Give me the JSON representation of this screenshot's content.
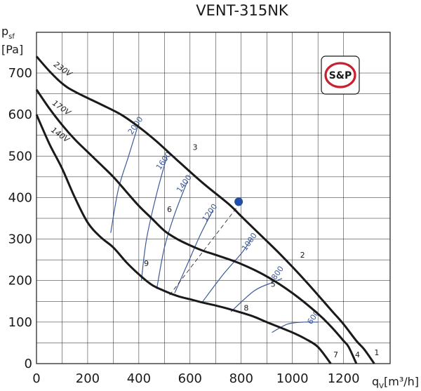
{
  "chart_data": {
    "type": "line",
    "title": "VENT-315NK",
    "ylabel_main": "p",
    "ylabel_sub": "sf",
    "yunit": "[Pa]",
    "xlabel_main": "q",
    "xlabel_sub": "V",
    "xunit": "[m³/h]",
    "xlim": [
      0,
      1300
    ],
    "ylim": [
      0,
      750
    ],
    "xticks": [
      "0",
      "200",
      "400",
      "600",
      "800",
      "1000",
      "1200"
    ],
    "yticks": [
      "0",
      "100",
      "200",
      "300",
      "400",
      "500",
      "600",
      "700"
    ],
    "grid": true,
    "logo_text": "S&P",
    "series": [
      {
        "name": "230V",
        "x": [
          0,
          50,
          100,
          150,
          250,
          330,
          400,
          470,
          550,
          650,
          750,
          800,
          850,
          950,
          1050,
          1150,
          1200,
          1250,
          1280,
          1320
        ],
        "y": [
          740,
          705,
          675,
          655,
          625,
          600,
          570,
          535,
          490,
          435,
          385,
          355,
          325,
          265,
          200,
          130,
          95,
          55,
          35,
          0
        ]
      },
      {
        "name": "170V",
        "x": [
          0,
          50,
          100,
          150,
          200,
          250,
          300,
          350,
          400,
          450,
          500,
          550,
          600,
          650,
          700,
          800,
          900,
          1000,
          1100,
          1150,
          1200,
          1220,
          1250
        ],
        "y": [
          660,
          615,
          575,
          540,
          510,
          480,
          450,
          415,
          380,
          350,
          320,
          300,
          285,
          272,
          262,
          240,
          210,
          170,
          120,
          90,
          55,
          40,
          0
        ]
      },
      {
        "name": "140V",
        "x": [
          0,
          50,
          100,
          150,
          200,
          250,
          300,
          350,
          400,
          450,
          500,
          550,
          600,
          650,
          700,
          750,
          800,
          850,
          900,
          1000,
          1050,
          1100,
          1150
        ],
        "y": [
          600,
          530,
          470,
          400,
          340,
          305,
          280,
          245,
          215,
          190,
          175,
          163,
          155,
          147,
          140,
          132,
          123,
          113,
          100,
          75,
          60,
          40,
          0
        ]
      }
    ],
    "series_labels": [
      {
        "text": "230V",
        "x": 65,
        "y": 718
      },
      {
        "text": "170V",
        "x": 60,
        "y": 625
      },
      {
        "text": "140V",
        "x": 55,
        "y": 560
      }
    ],
    "rpm_lines": [
      {
        "label": "2000",
        "x": [
          290,
          320,
          360,
          400
        ],
        "y": [
          315,
          420,
          500,
          580
        ]
      },
      {
        "label": "1600",
        "x": [
          410,
          430,
          470,
          510
        ],
        "y": [
          200,
          300,
          410,
          500
        ]
      },
      {
        "label": "1400",
        "x": [
          470,
          500,
          540,
          590
        ],
        "y": [
          180,
          280,
          360,
          440
        ]
      },
      {
        "label": "1200",
        "x": [
          540,
          590,
          640,
          690
        ],
        "y": [
          170,
          240,
          310,
          370
        ]
      },
      {
        "label": "1000",
        "x": [
          650,
          730,
          800,
          840
        ],
        "y": [
          150,
          215,
          265,
          300
        ]
      },
      {
        "label": "800",
        "x": [
          760,
          850,
          920,
          960
        ],
        "y": [
          125,
          175,
          195,
          205
        ]
      },
      {
        "label": "600",
        "x": [
          920,
          980,
          1040,
          1100
        ],
        "y": [
          75,
          95,
          100,
          100
        ]
      }
    ],
    "rpm_label_positions": [
      {
        "label": "2000",
        "x": 395,
        "y": 570
      },
      {
        "label": "1600",
        "x": 505,
        "y": 485
      },
      {
        "label": "1400",
        "x": 585,
        "y": 430
      },
      {
        "label": "1200",
        "x": 685,
        "y": 360
      },
      {
        "label": "1000",
        "x": 840,
        "y": 290
      },
      {
        "label": "800",
        "x": 950,
        "y": 215
      },
      {
        "label": "600",
        "x": 1090,
        "y": 108
      }
    ],
    "reference_line": {
      "x": [
        520,
        800
      ],
      "y": [
        165,
        390
      ]
    },
    "operating_point": {
      "x": 790,
      "y": 390,
      "color": "#1f4fa8"
    },
    "points": [
      {
        "label": "1",
        "x": 1320,
        "y": 20
      },
      {
        "label": "2",
        "x": 1030,
        "y": 255
      },
      {
        "label": "3",
        "x": 610,
        "y": 515
      },
      {
        "label": "4",
        "x": 1245,
        "y": 15
      },
      {
        "label": "5",
        "x": 915,
        "y": 185
      },
      {
        "label": "6",
        "x": 510,
        "y": 365
      },
      {
        "label": "7",
        "x": 1160,
        "y": 15
      },
      {
        "label": "8",
        "x": 810,
        "y": 128
      },
      {
        "label": "9",
        "x": 420,
        "y": 235
      }
    ],
    "colors": {
      "curve": "#1a1a1a",
      "rpm": "#3d5a99",
      "grid": "#1a1a1a",
      "logo": "#c8202f"
    }
  }
}
